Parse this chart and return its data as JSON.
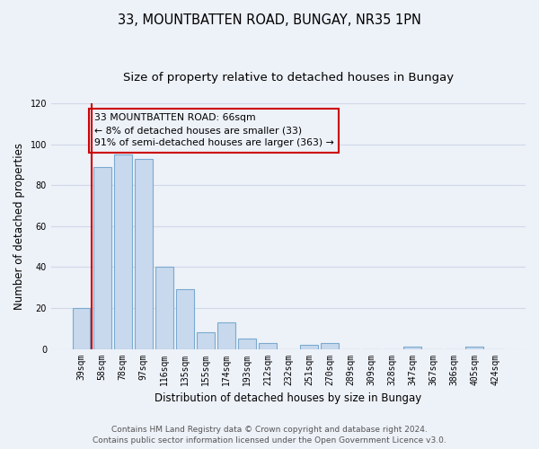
{
  "title": "33, MOUNTBATTEN ROAD, BUNGAY, NR35 1PN",
  "subtitle": "Size of property relative to detached houses in Bungay",
  "xlabel": "Distribution of detached houses by size in Bungay",
  "ylabel": "Number of detached properties",
  "bar_labels": [
    "39sqm",
    "58sqm",
    "78sqm",
    "97sqm",
    "116sqm",
    "135sqm",
    "155sqm",
    "174sqm",
    "193sqm",
    "212sqm",
    "232sqm",
    "251sqm",
    "270sqm",
    "289sqm",
    "309sqm",
    "328sqm",
    "347sqm",
    "367sqm",
    "386sqm",
    "405sqm",
    "424sqm"
  ],
  "bar_values": [
    20,
    89,
    95,
    93,
    40,
    29,
    8,
    13,
    5,
    3,
    0,
    2,
    3,
    0,
    0,
    0,
    1,
    0,
    0,
    1,
    0
  ],
  "bar_color": "#c8d9ed",
  "bar_edge_color": "#7aaacf",
  "vline_color": "#cc0000",
  "annotation_text": "33 MOUNTBATTEN ROAD: 66sqm\n← 8% of detached houses are smaller (33)\n91% of semi-detached houses are larger (363) →",
  "annotation_box_edgecolor": "#cc0000",
  "ylim": [
    0,
    120
  ],
  "yticks": [
    0,
    20,
    40,
    60,
    80,
    100,
    120
  ],
  "footer_line1": "Contains HM Land Registry data © Crown copyright and database right 2024.",
  "footer_line2": "Contains public sector information licensed under the Open Government Licence v3.0.",
  "background_color": "#edf1f8",
  "grid_color": "#d0d8e8",
  "title_fontsize": 10.5,
  "subtitle_fontsize": 9.5,
  "axis_label_fontsize": 8.5,
  "tick_fontsize": 7,
  "footer_fontsize": 6.5,
  "annotation_fontsize": 7.8
}
